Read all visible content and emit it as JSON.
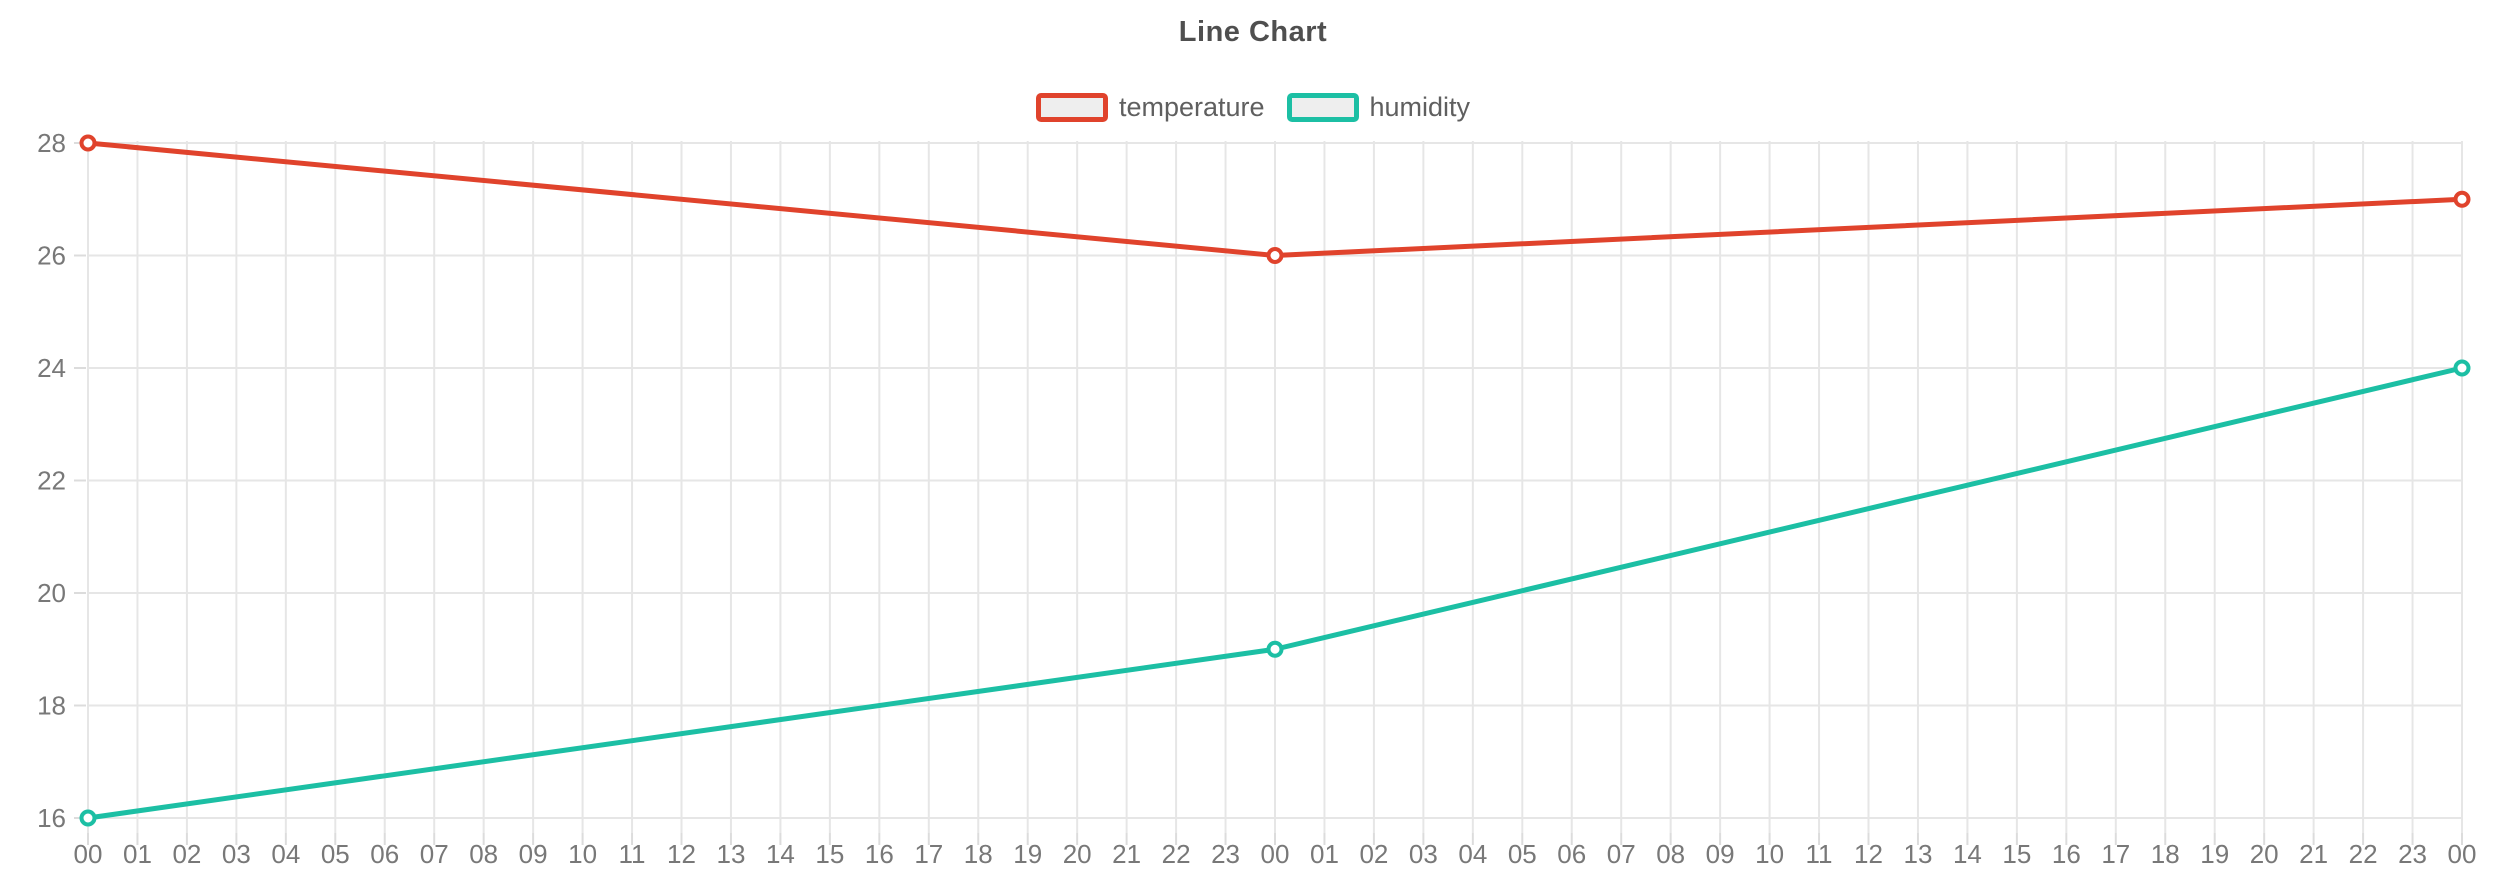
{
  "chart_data": {
    "type": "line",
    "title": "Line Chart",
    "xlabel": "",
    "ylabel": "",
    "grid": true,
    "legend_position": "top-center",
    "background_color": "#ffffff",
    "grid_color": "#e6e6e6",
    "axis_text_color": "#787878",
    "title_color": "#4f4f4f",
    "marker_style": "open-circle",
    "ylim": [
      15.7,
      28
    ],
    "y_ticks": [
      16,
      18,
      20,
      22,
      24,
      26,
      28
    ],
    "x_categories": [
      "00",
      "01",
      "02",
      "03",
      "04",
      "05",
      "06",
      "07",
      "08",
      "09",
      "10",
      "11",
      "12",
      "13",
      "14",
      "15",
      "16",
      "17",
      "18",
      "19",
      "20",
      "21",
      "22",
      "23",
      "00",
      "01",
      "02",
      "03",
      "04",
      "05",
      "06",
      "07",
      "08",
      "09",
      "10",
      "11",
      "12",
      "13",
      "14",
      "15",
      "16",
      "17",
      "18",
      "19",
      "20",
      "21",
      "22",
      "23",
      "00"
    ],
    "series": [
      {
        "name": "temperature",
        "color": "#e0432c",
        "x_indices": [
          0,
          24,
          48
        ],
        "x_labels": [
          "00",
          "00",
          "00"
        ],
        "values": [
          28,
          26,
          27
        ]
      },
      {
        "name": "humidity",
        "color": "#1cbfa4",
        "x_indices": [
          0,
          24,
          48
        ],
        "x_labels": [
          "00",
          "00",
          "00"
        ],
        "values": [
          16,
          19,
          24
        ]
      }
    ]
  }
}
